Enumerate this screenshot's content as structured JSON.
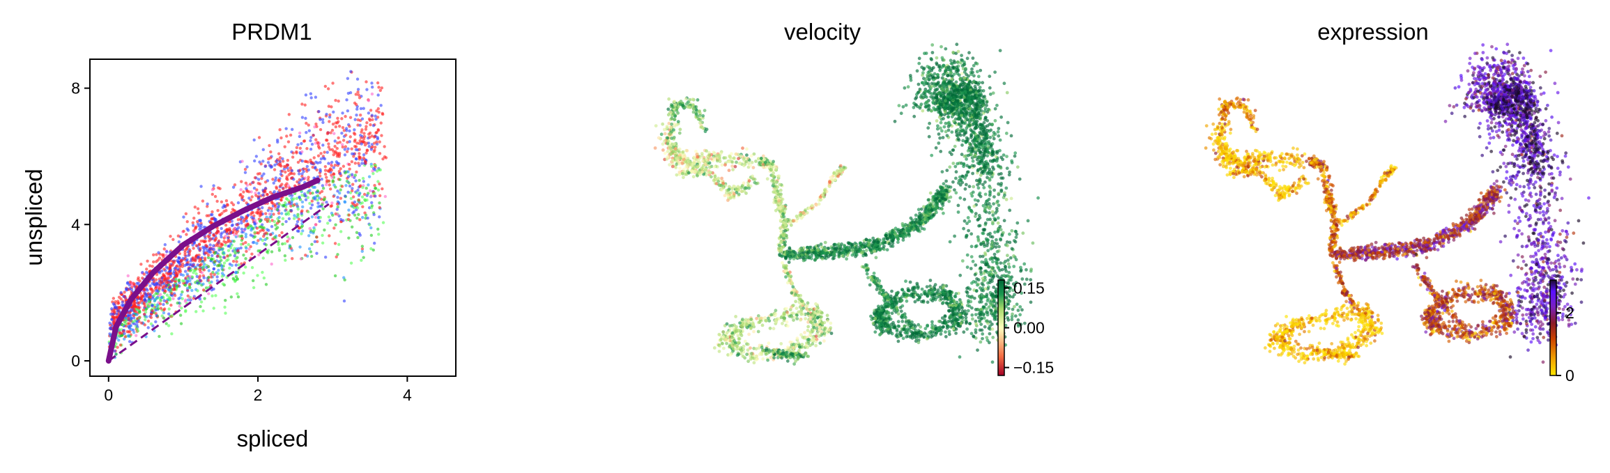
{
  "chart_data": [
    {
      "type": "scatter",
      "title": "PRDM1",
      "xlabel": "spliced",
      "ylabel": "unspliced",
      "xlim": [
        -0.25,
        4.65
      ],
      "ylim": [
        -0.45,
        8.85
      ],
      "xticks": [
        "0",
        "2",
        "4"
      ],
      "xtick_values": [
        0,
        2,
        4
      ],
      "yticks": [
        "0",
        "4",
        "8"
      ],
      "ytick_values": [
        0,
        4,
        8
      ],
      "grid": false,
      "legend": "none",
      "point_colors": [
        "#ff2020",
        "#3040ff",
        "#22cc22",
        "#55ff55",
        "#1e90ff",
        "#ff66cc",
        "#8a2be2"
      ],
      "fit_curve": {
        "color": "#7a0f8a",
        "x": [
          0,
          0.1,
          0.3,
          0.6,
          1.0,
          1.4,
          1.8,
          2.2,
          2.6,
          2.8
        ],
        "y": [
          0,
          1.0,
          1.8,
          2.6,
          3.4,
          3.95,
          4.4,
          4.8,
          5.1,
          5.3
        ]
      },
      "steady_state_line": {
        "color": "#7a0f8a",
        "style": "dashed",
        "x": [
          0,
          2.95
        ],
        "y": [
          0,
          4.6
        ]
      }
    },
    {
      "type": "scatter",
      "title": "velocity",
      "colorbar": {
        "ticks": [
          "0.15",
          "0.00",
          "−0.15"
        ],
        "tick_values": [
          0.15,
          0.0,
          -0.15
        ],
        "range": [
          -0.18,
          0.18
        ],
        "colormap": [
          "#a50026",
          "#f46d43",
          "#ffffbf",
          "#a6d96a",
          "#1a9850",
          "#006837"
        ]
      },
      "legend": "none",
      "grid": false
    },
    {
      "type": "scatter",
      "title": "expression",
      "colorbar": {
        "ticks": [
          "2",
          "0"
        ],
        "tick_values": [
          2,
          0
        ],
        "range": [
          0,
          3.05
        ],
        "colormap": [
          "#ffe600",
          "#f0a000",
          "#cc4400",
          "#8a1a2a",
          "#7a20c0",
          "#5a10ff",
          "#1a0a2a"
        ]
      },
      "legend": "none",
      "grid": false
    }
  ]
}
